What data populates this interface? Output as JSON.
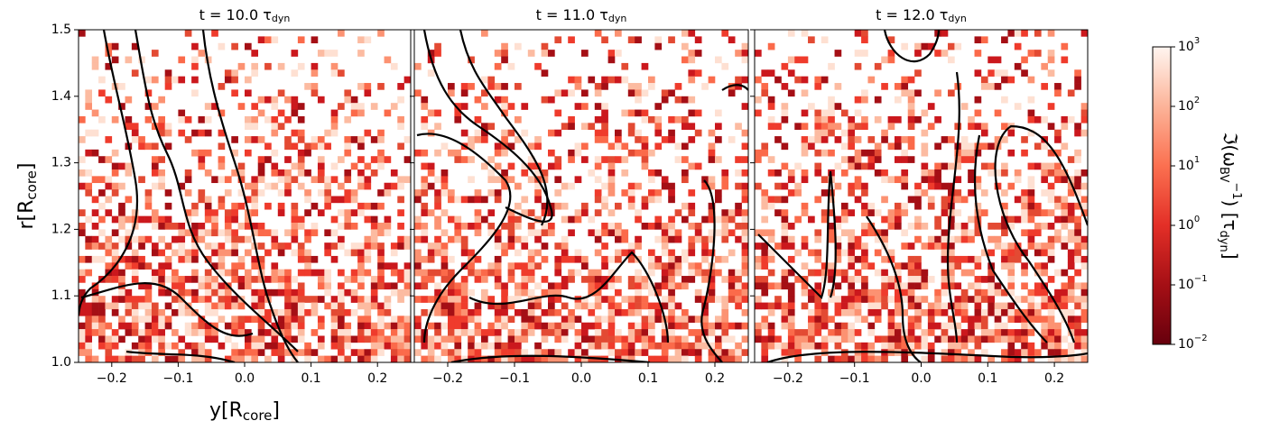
{
  "chart_data": [
    {
      "type": "heatmap",
      "title": "t =  10.0 τ",
      "title_subscript": "dyn",
      "xlabel": [
        "y[R",
        "core",
        "]"
      ],
      "ylabel": [
        "r[R",
        "core",
        "]"
      ],
      "xlim": [
        -0.25,
        0.25
      ],
      "xticks": [
        {
          "value": -0.2,
          "label": "−0.2"
        },
        {
          "value": -0.1,
          "label": "−0.1"
        },
        {
          "value": 0,
          "label": "0.0"
        },
        0.1,
        0.2
      ],
      "ylim": [
        1.0,
        1.5
      ],
      "yticks": [
        {
          "value": 1.0,
          "label": "1.0"
        },
        1.1,
        1.2,
        1.3,
        1.4,
        1.5
      ],
      "show_ytick_labels": true
    },
    {
      "type": "heatmap",
      "title": "t =  11.0 τ",
      "title_subscript": "dyn",
      "xlim": [
        -0.25,
        0.25
      ],
      "xticks": [
        {
          "value": -0.2,
          "label": "−0.2"
        },
        {
          "value": -0.1,
          "label": "−0.1"
        },
        {
          "value": 0,
          "label": "0.0"
        },
        0.1,
        0.2
      ],
      "ylim": [
        1.0,
        1.5
      ],
      "yticks": [
        1.0,
        1.1,
        1.2,
        1.3,
        1.4,
        1.5
      ],
      "show_ytick_labels": false
    },
    {
      "type": "heatmap",
      "title": "t =  12.0 τ",
      "title_subscript": "dyn",
      "xlim": [
        -0.25,
        0.25
      ],
      "xticks": [
        {
          "value": -0.2,
          "label": "−0.2"
        },
        {
          "value": -0.1,
          "label": "−0.1"
        },
        {
          "value": 0,
          "label": "0.0"
        },
        0.1,
        0.2
      ],
      "ylim": [
        1.0,
        1.5
      ],
      "yticks": [
        1.0,
        1.1,
        1.2,
        1.3,
        1.4,
        1.5
      ],
      "show_ytick_labels": false
    }
  ],
  "colorbar": {
    "scale": "log",
    "lim": [
      0.01,
      1000
    ],
    "colormap": "Reds_r",
    "ticks": [
      {
        "value": 0.01,
        "label": "10",
        "exponent": "−2"
      },
      {
        "value": 0.1,
        "label": "10",
        "exponent": "−1"
      },
      {
        "value": 1,
        "label": "10",
        "exponent": "0"
      },
      {
        "value": 10,
        "label": "10",
        "exponent": "1"
      },
      {
        "value": 100,
        "label": "10",
        "exponent": "2"
      },
      {
        "value": 1000,
        "label": "10",
        "exponent": "3"
      }
    ],
    "label": [
      "ℑ(ω",
      "BV",
      "−1",
      ") [τ",
      "dyn",
      "]"
    ]
  }
}
